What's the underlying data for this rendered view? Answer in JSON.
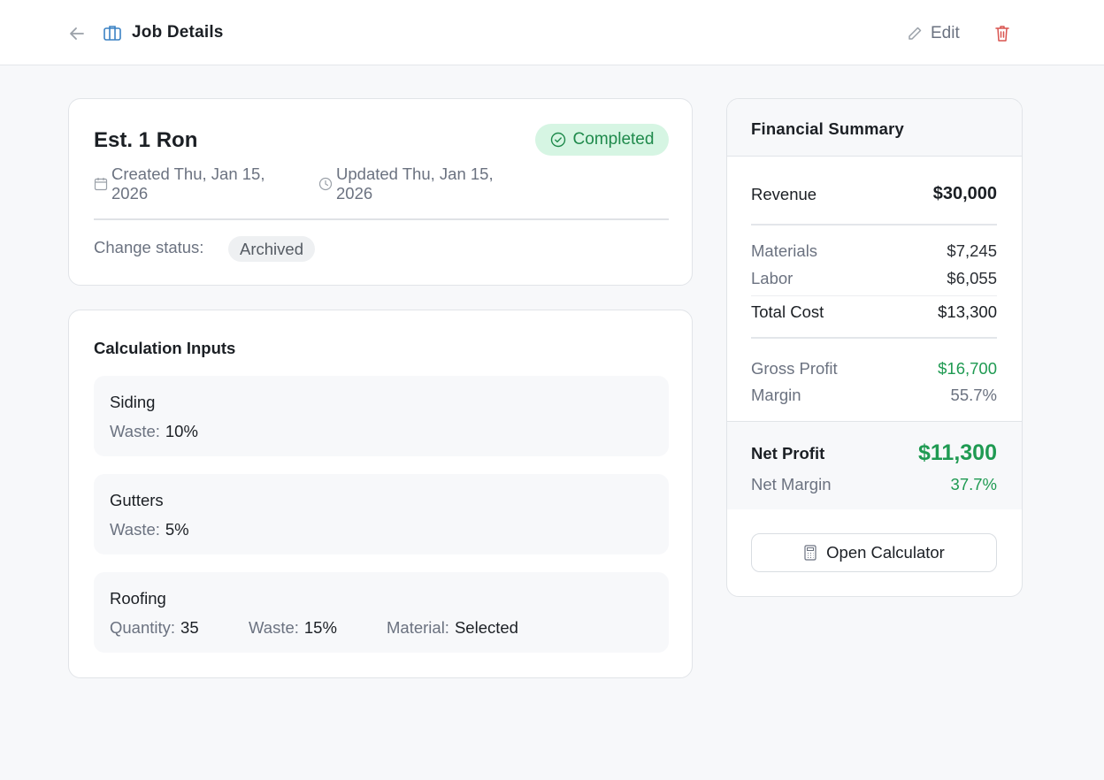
{
  "header": {
    "title": "Job Details",
    "edit_label": "Edit"
  },
  "job": {
    "name": "Est. 1 Ron",
    "status": "Completed",
    "created_line1": "Created Thu, Jan 15,",
    "created_line2": "2026",
    "updated_line1": "Updated Thu, Jan 15,",
    "updated_line2": "2026",
    "change_status_label": "Change status:",
    "change_status_option": "Archived"
  },
  "calculation": {
    "title": "Calculation Inputs",
    "items": [
      {
        "name": "Siding",
        "fields": [
          {
            "label": "Waste:",
            "value": "10%"
          }
        ]
      },
      {
        "name": "Gutters",
        "fields": [
          {
            "label": "Waste:",
            "value": "5%"
          }
        ]
      },
      {
        "name": "Roofing",
        "fields": [
          {
            "label": "Quantity:",
            "value": "35"
          },
          {
            "label": "Waste:",
            "value": "15%"
          },
          {
            "label": "Material:",
            "value": "Selected"
          }
        ]
      }
    ]
  },
  "financial": {
    "title": "Financial Summary",
    "revenue_label": "Revenue",
    "revenue_value": "$30,000",
    "materials_label": "Materials",
    "materials_value": "$7,245",
    "labor_label": "Labor",
    "labor_value": "$6,055",
    "total_cost_label": "Total Cost",
    "total_cost_value": "$13,300",
    "gross_profit_label": "Gross Profit",
    "gross_profit_value": "$16,700",
    "margin_label": "Margin",
    "margin_value": "55.7%",
    "net_profit_label": "Net Profit",
    "net_profit_value": "$11,300",
    "net_margin_label": "Net Margin",
    "net_margin_value": "37.7%",
    "open_calculator_label": "Open Calculator"
  },
  "colors": {
    "accent_green": "#1f9a52",
    "badge_bg": "#d6f5e3",
    "delete_red": "#d9534f",
    "briefcase_blue": "#3b82c4"
  }
}
